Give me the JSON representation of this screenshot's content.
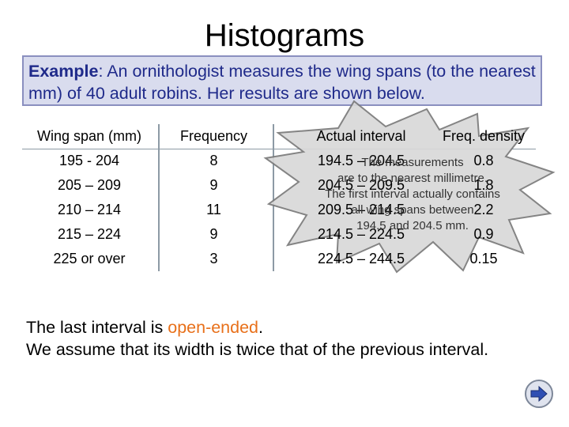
{
  "title": "Histograms",
  "example": {
    "label": "Example",
    "text": ": An ornithologist measures the wing spans (to the nearest mm) of 40 adult robins. Her results are shown below."
  },
  "table": {
    "headers": [
      "Wing span (mm)",
      "Frequency",
      "Actual interval",
      "Freq. density"
    ],
    "rows": [
      {
        "span": "195 - 204",
        "freq": "8",
        "interval": "194.5 – 204.5",
        "density": "0.8"
      },
      {
        "span": "205 – 209",
        "freq": "9",
        "interval": "204.5 – 209.5",
        "density": "1.8"
      },
      {
        "span": "210 – 214",
        "freq": "11",
        "interval": "209.5 – 214.5",
        "density": "2.2"
      },
      {
        "span": "215 – 224",
        "freq": "9",
        "interval": "214.5 – 224.5",
        "density": "0.9"
      },
      {
        "span": "225 or over",
        "freq": "3",
        "interval": "224.5 – 244.5",
        "density": "0.15"
      }
    ]
  },
  "callout": {
    "line1": "The measurements",
    "line2": "are to the nearest millimetre.",
    "line3": "The first interval actually contains",
    "line4": "all wing spans between",
    "line5": "194.5 and 204.5 mm."
  },
  "bottom": {
    "line1_pre": "The last interval is ",
    "line1_emph": "open-ended",
    "line1_post": ".",
    "line2": "We assume that its width is twice that of the previous interval."
  },
  "colors": {
    "example_bg": "#d9dcee",
    "example_text": "#1f2a8a",
    "emphasis": "#e8701a",
    "starburst_fill": "#d8d8d8",
    "starburst_stroke": "#7a7a7a"
  },
  "icons": {
    "next": "next-arrow-icon"
  }
}
